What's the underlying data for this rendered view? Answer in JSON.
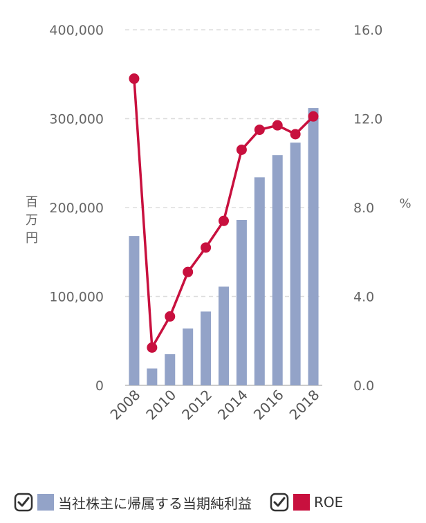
{
  "chart_data": {
    "type": "bar+line",
    "categories": [
      "2008",
      "2009",
      "2010",
      "2011",
      "2012",
      "2013",
      "2014",
      "2015",
      "2016",
      "2017",
      "2018"
    ],
    "series": [
      {
        "name": "当社株主に帰属する当期純利益",
        "type": "bar",
        "axis": "left",
        "color": "#93a3c8",
        "values": [
          168000,
          19000,
          35000,
          64000,
          83000,
          111000,
          186000,
          234000,
          259000,
          273000,
          312000
        ]
      },
      {
        "name": "ROE",
        "type": "line",
        "axis": "right",
        "color": "#c8103e",
        "values": [
          13.8,
          1.7,
          3.1,
          5.1,
          6.2,
          7.4,
          10.6,
          11.5,
          11.7,
          11.3,
          12.1
        ]
      }
    ],
    "x_tick_labels": [
      "2008",
      "2010",
      "2012",
      "2014",
      "2016",
      "2018"
    ],
    "y_left": {
      "label": "百万円",
      "range": [
        0,
        400000
      ],
      "ticks": [
        "0",
        "100,000",
        "200,000",
        "300,000",
        "400,000"
      ]
    },
    "y_right": {
      "label": "%",
      "range": [
        0,
        16
      ],
      "ticks": [
        "0.0",
        "4.0",
        "8.0",
        "12.0",
        "16.0"
      ]
    },
    "grid": true,
    "legend_position": "bottom"
  },
  "legend": {
    "items": [
      {
        "label": "当社株主に帰属する当期純利益",
        "color": "#93a3c8"
      },
      {
        "label": "ROE",
        "color": "#c8103e"
      }
    ]
  }
}
